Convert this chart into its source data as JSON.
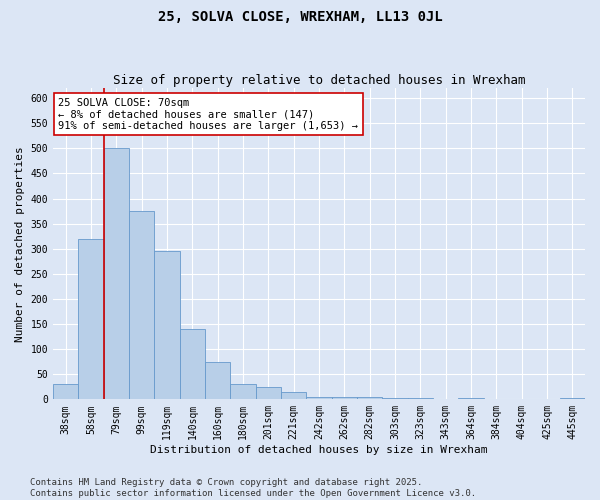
{
  "title": "25, SOLVA CLOSE, WREXHAM, LL13 0JL",
  "subtitle": "Size of property relative to detached houses in Wrexham",
  "xlabel": "Distribution of detached houses by size in Wrexham",
  "ylabel": "Number of detached properties",
  "categories": [
    "38sqm",
    "58sqm",
    "79sqm",
    "99sqm",
    "119sqm",
    "140sqm",
    "160sqm",
    "180sqm",
    "201sqm",
    "221sqm",
    "242sqm",
    "262sqm",
    "282sqm",
    "303sqm",
    "323sqm",
    "343sqm",
    "364sqm",
    "384sqm",
    "404sqm",
    "425sqm",
    "445sqm"
  ],
  "values": [
    30,
    320,
    500,
    375,
    295,
    140,
    75,
    30,
    25,
    15,
    5,
    5,
    5,
    3,
    3,
    0,
    3,
    0,
    0,
    0,
    3
  ],
  "bar_color": "#b8cfe8",
  "bar_edge_color": "#6699cc",
  "background_color": "#dce6f5",
  "grid_color": "#ffffff",
  "vline_x_index": 1.5,
  "vline_color": "#cc0000",
  "annotation_text": "25 SOLVA CLOSE: 70sqm\n← 8% of detached houses are smaller (147)\n91% of semi-detached houses are larger (1,653) →",
  "annotation_box_facecolor": "#ffffff",
  "annotation_box_edgecolor": "#cc0000",
  "ylim": [
    0,
    620
  ],
  "yticks": [
    0,
    50,
    100,
    150,
    200,
    250,
    300,
    350,
    400,
    450,
    500,
    550,
    600
  ],
  "footnote": "Contains HM Land Registry data © Crown copyright and database right 2025.\nContains public sector information licensed under the Open Government Licence v3.0.",
  "title_fontsize": 10,
  "subtitle_fontsize": 9,
  "axis_label_fontsize": 8,
  "tick_fontsize": 7,
  "annotation_fontsize": 7.5,
  "footnote_fontsize": 6.5
}
